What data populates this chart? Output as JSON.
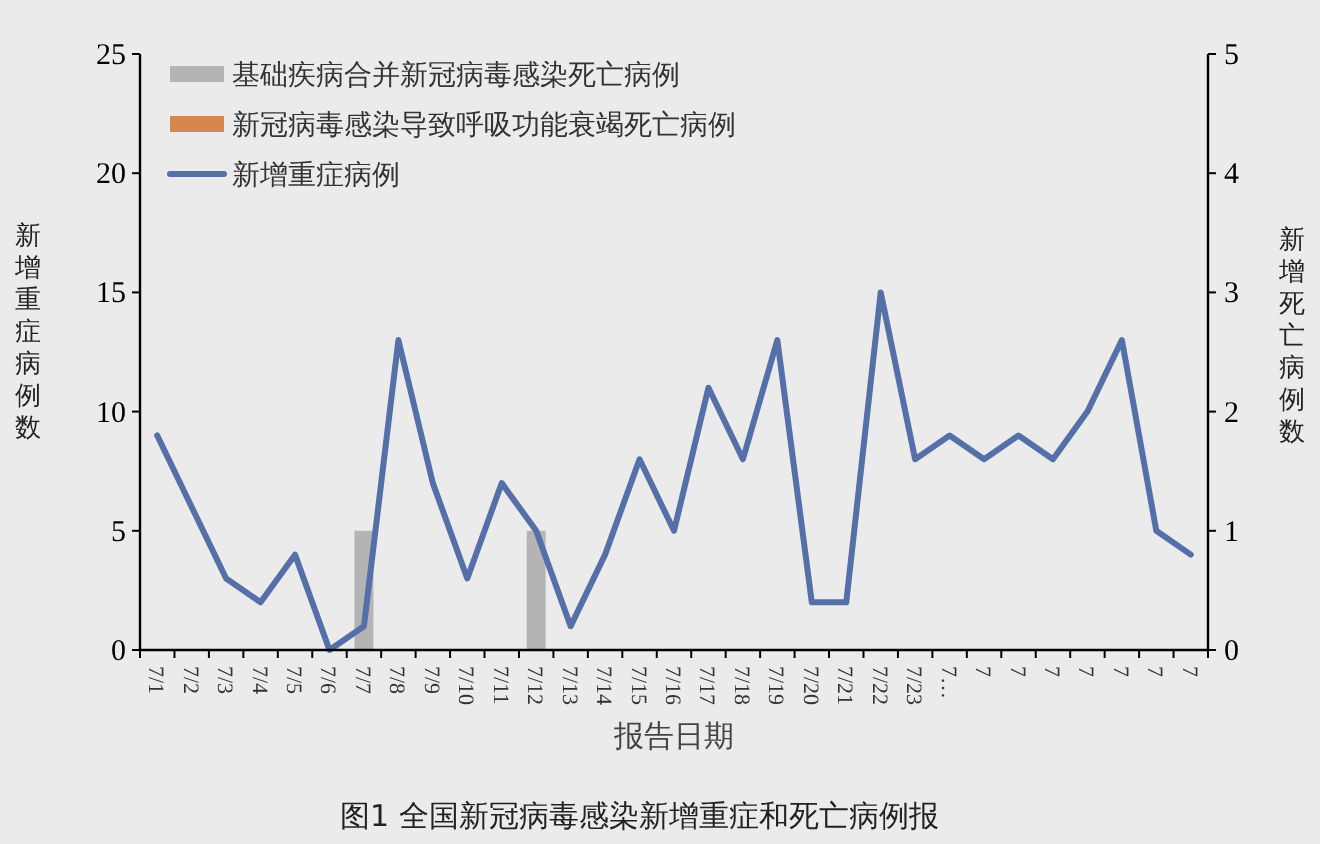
{
  "chart_data": {
    "type": "bar",
    "title": "图1 全国新冠病毒感染新增重症和死亡病例报",
    "xlabel": "报告日期",
    "ylabel": "新增重症病例数",
    "y2label": "新增死亡病例数",
    "categories": [
      "7/1",
      "7/2",
      "7/3",
      "7/4",
      "7/5",
      "7/6",
      "7/7",
      "7/8",
      "7/9",
      "7/10",
      "7/11",
      "7/12",
      "7/13",
      "7/14",
      "7/15",
      "7/16",
      "7/17",
      "7/18",
      "7/19",
      "7/20",
      "7/21",
      "7/22",
      "7/23",
      "7…",
      "7",
      "7",
      "7",
      "7",
      "7",
      "7",
      "7"
    ],
    "series": [
      {
        "name": "基础疾病合并新冠病毒感染死亡病例",
        "type": "bar",
        "axis": "y2",
        "color": "#b4b4b4",
        "values": [
          0,
          0,
          0,
          0,
          0,
          0,
          1,
          0,
          0,
          0,
          0,
          1,
          0,
          0,
          0,
          0,
          0,
          0,
          0,
          0,
          0,
          0,
          0,
          0,
          0,
          0,
          0,
          0,
          0,
          0,
          0
        ]
      },
      {
        "name": "新冠病毒感染导致呼吸功能衰竭死亡病例",
        "type": "bar",
        "axis": "y2",
        "color": "#d4884e",
        "values": [
          0,
          0,
          0,
          0,
          0,
          0,
          0,
          0,
          0,
          0,
          0,
          0,
          0,
          0,
          0,
          0,
          0,
          0,
          0,
          0,
          0,
          0,
          0,
          0,
          0,
          0,
          0,
          0,
          0,
          0,
          0
        ]
      },
      {
        "name": "新增重症病例",
        "type": "line",
        "color": "#5570a8",
        "values": [
          9,
          6,
          3,
          2,
          4,
          0,
          1,
          13,
          7,
          3,
          7,
          5,
          1,
          4,
          8,
          5,
          11,
          8,
          13,
          2,
          2,
          15,
          8,
          9,
          8,
          9,
          8,
          10,
          13,
          5,
          4
        ]
      }
    ],
    "ylim": [
      0,
      25
    ],
    "yticks": [
      0,
      5,
      10,
      15,
      20,
      25
    ],
    "y2lim": [
      0,
      5
    ],
    "y2ticks": [
      0,
      1,
      2,
      3,
      4,
      5
    ],
    "legend": "top left",
    "grid": false
  }
}
